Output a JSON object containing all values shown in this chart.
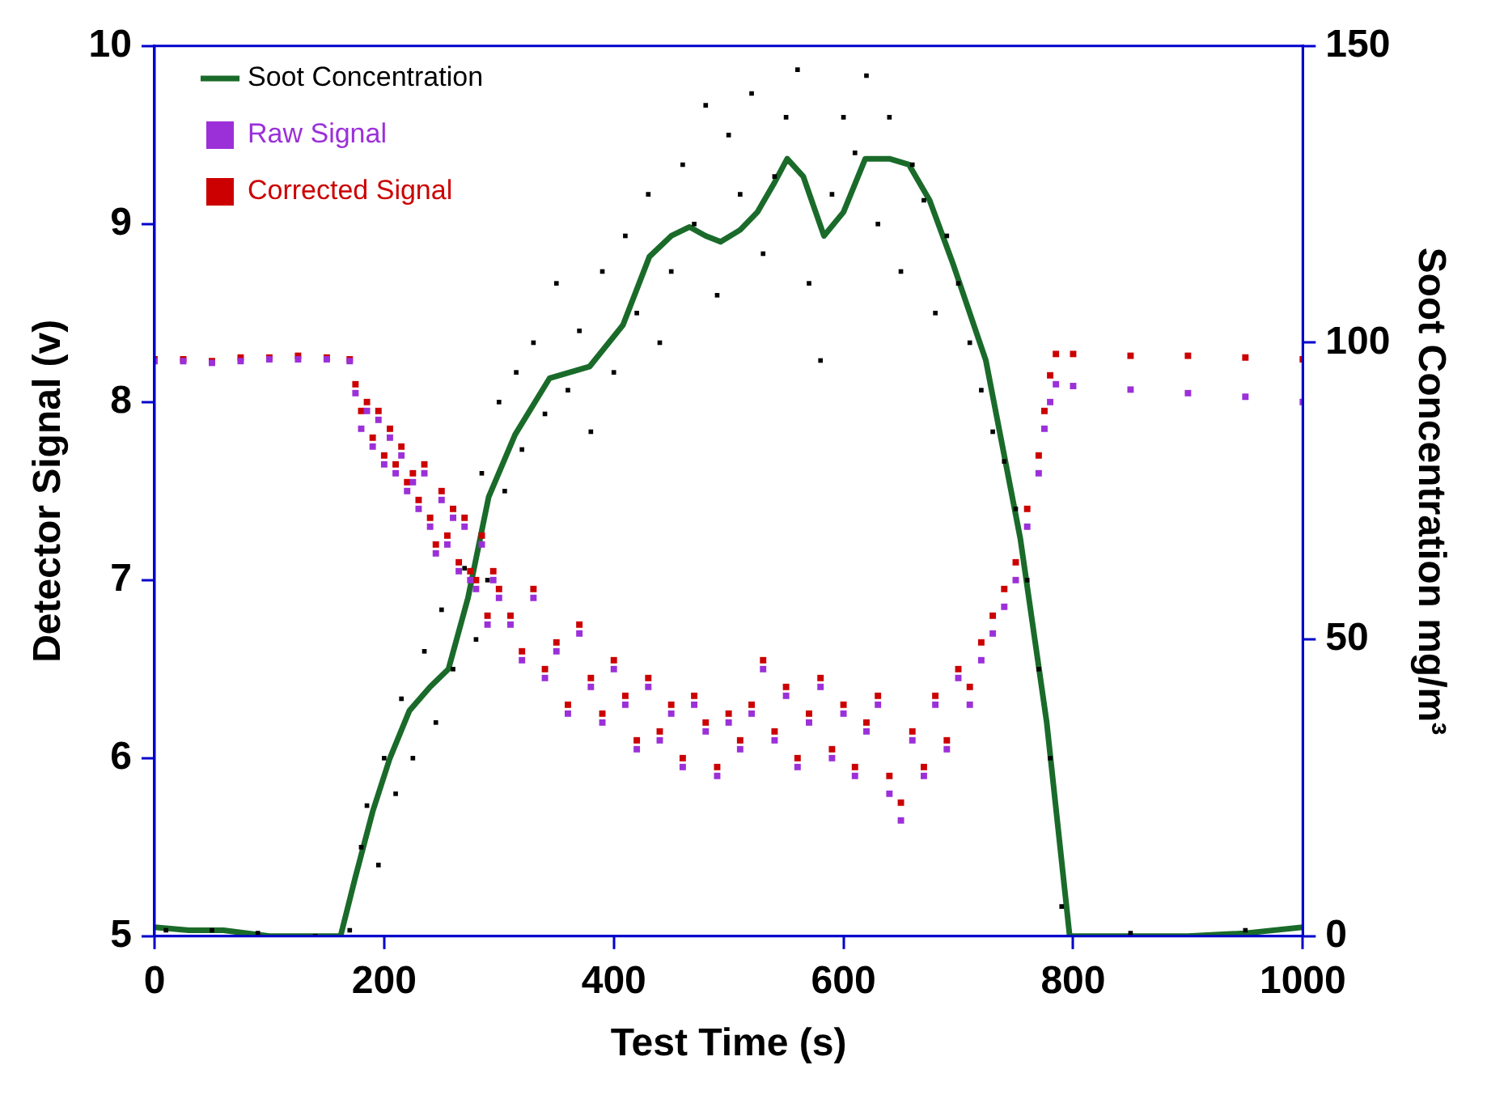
{
  "chart_data": {
    "type": "scatter",
    "xlabel": "Test Time (s)",
    "ylabel": "Detector Signal (v)",
    "y2label": "Soot Concentration mg/m³",
    "xlim": [
      0,
      1000
    ],
    "xticks": [
      0,
      200,
      400,
      600,
      800,
      1000
    ],
    "ylim": [
      5,
      10
    ],
    "yticks": [
      5,
      6,
      7,
      8,
      9,
      10
    ],
    "y2lim": [
      0,
      150
    ],
    "y2ticks": [
      0,
      50,
      100,
      150
    ],
    "grid": false,
    "legend": "top left",
    "series": [
      {
        "name": "Soot Concentration",
        "type": "line",
        "axis": "y2",
        "color": "#1a6b2a",
        "marker": "none",
        "x": [
          0,
          30,
          60,
          100,
          130,
          162,
          175,
          190,
          205,
          222,
          240,
          256,
          273,
          291,
          314,
          344,
          379,
          408,
          431,
          450,
          466,
          480,
          493,
          510,
          525,
          540,
          551,
          565,
          583,
          600,
          619,
          640,
          657,
          675,
          695,
          724,
          754,
          777,
          797,
          850,
          900,
          950,
          1000
        ],
        "values": [
          1.5,
          1,
          1,
          0,
          0,
          0,
          10,
          21,
          30,
          38,
          42,
          45,
          57,
          74,
          84.5,
          94,
          96,
          103,
          114.5,
          118,
          119.5,
          118,
          117,
          119,
          122,
          127,
          131,
          128,
          118,
          122,
          131,
          131,
          130,
          124,
          113.5,
          97,
          67,
          36,
          0,
          0,
          0,
          0.5,
          1.5
        ]
      },
      {
        "axis": "y2",
        "color": "#000000",
        "marker": "square",
        "x": [
          10,
          50,
          90,
          140,
          170,
          180,
          185,
          195,
          200,
          210,
          215,
          225,
          235,
          245,
          250,
          260,
          270,
          280,
          285,
          290,
          300,
          305,
          315,
          320,
          330,
          340,
          350,
          360,
          370,
          380,
          390,
          400,
          410,
          420,
          430,
          440,
          450,
          460,
          470,
          480,
          490,
          500,
          510,
          520,
          530,
          540,
          550,
          560,
          570,
          580,
          590,
          600,
          610,
          620,
          630,
          640,
          650,
          660,
          670,
          680,
          690,
          700,
          710,
          720,
          730,
          740,
          750,
          760,
          770,
          780,
          790,
          850,
          950
        ],
        "values": [
          1,
          1,
          0.5,
          0,
          1,
          15,
          22,
          12,
          30,
          24,
          40,
          30,
          48,
          36,
          55,
          45,
          62,
          50,
          78,
          60,
          90,
          75,
          95,
          82,
          100,
          88,
          110,
          92,
          102,
          85,
          112,
          95,
          118,
          105,
          125,
          100,
          112,
          130,
          120,
          140,
          108,
          135,
          125,
          142,
          115,
          128,
          138,
          146,
          110,
          97,
          125,
          138,
          132,
          145,
          120,
          138,
          112,
          130,
          124,
          105,
          118,
          110,
          100,
          92,
          85,
          80,
          72,
          60,
          45,
          30,
          5,
          0.5,
          1
        ]
      },
      {
        "name": "Raw Signal",
        "axis": "y",
        "color": "#9b30d9",
        "marker": "square",
        "x": [
          0,
          25,
          50,
          75,
          100,
          125,
          150,
          170,
          175,
          180,
          185,
          190,
          195,
          200,
          205,
          210,
          215,
          220,
          225,
          230,
          235,
          240,
          245,
          250,
          255,
          260,
          265,
          270,
          275,
          280,
          285,
          290,
          295,
          300,
          310,
          320,
          330,
          340,
          350,
          360,
          370,
          380,
          390,
          400,
          410,
          420,
          430,
          440,
          450,
          460,
          470,
          480,
          490,
          500,
          510,
          520,
          530,
          540,
          550,
          560,
          570,
          580,
          590,
          600,
          610,
          620,
          630,
          640,
          650,
          660,
          670,
          680,
          690,
          700,
          710,
          720,
          730,
          740,
          750,
          760,
          770,
          775,
          780,
          785,
          800,
          850,
          900,
          950,
          1000
        ],
        "values": [
          8.23,
          8.23,
          8.22,
          8.23,
          8.24,
          8.24,
          8.24,
          8.23,
          8.05,
          7.85,
          7.95,
          7.75,
          7.9,
          7.65,
          7.8,
          7.6,
          7.7,
          7.5,
          7.55,
          7.4,
          7.6,
          7.3,
          7.15,
          7.45,
          7.2,
          7.35,
          7.05,
          7.3,
          7.0,
          6.95,
          7.2,
          6.75,
          7.0,
          6.9,
          6.75,
          6.55,
          6.9,
          6.45,
          6.6,
          6.25,
          6.7,
          6.4,
          6.2,
          6.5,
          6.3,
          6.05,
          6.4,
          6.1,
          6.25,
          5.95,
          6.3,
          6.15,
          5.9,
          6.2,
          6.05,
          6.25,
          6.5,
          6.1,
          6.35,
          5.95,
          6.2,
          6.4,
          6.0,
          6.25,
          5.9,
          6.15,
          6.3,
          5.8,
          5.65,
          6.1,
          5.9,
          6.3,
          6.05,
          6.45,
          6.3,
          6.55,
          6.7,
          6.85,
          7.0,
          7.3,
          7.6,
          7.85,
          8.0,
          8.1,
          8.09,
          8.07,
          8.05,
          8.03,
          8.0
        ]
      },
      {
        "name": "Corrected Signal",
        "axis": "y",
        "color": "#cc0000",
        "marker": "square",
        "x": [
          0,
          25,
          50,
          75,
          100,
          125,
          150,
          170,
          175,
          180,
          185,
          190,
          195,
          200,
          205,
          210,
          215,
          220,
          225,
          230,
          235,
          240,
          245,
          250,
          255,
          260,
          265,
          270,
          275,
          280,
          285,
          290,
          295,
          300,
          310,
          320,
          330,
          340,
          350,
          360,
          370,
          380,
          390,
          400,
          410,
          420,
          430,
          440,
          450,
          460,
          470,
          480,
          490,
          500,
          510,
          520,
          530,
          540,
          550,
          560,
          570,
          580,
          590,
          600,
          610,
          620,
          630,
          640,
          650,
          660,
          670,
          680,
          690,
          700,
          710,
          720,
          730,
          740,
          750,
          760,
          770,
          775,
          780,
          785,
          800,
          850,
          900,
          950,
          1000
        ],
        "values": [
          8.24,
          8.24,
          8.23,
          8.25,
          8.25,
          8.26,
          8.25,
          8.24,
          8.1,
          7.95,
          8.0,
          7.8,
          7.95,
          7.7,
          7.85,
          7.65,
          7.75,
          7.55,
          7.6,
          7.45,
          7.65,
          7.35,
          7.2,
          7.5,
          7.25,
          7.4,
          7.1,
          7.35,
          7.05,
          7.0,
          7.25,
          6.8,
          7.05,
          6.95,
          6.8,
          6.6,
          6.95,
          6.5,
          6.65,
          6.3,
          6.75,
          6.45,
          6.25,
          6.55,
          6.35,
          6.1,
          6.45,
          6.15,
          6.3,
          6.0,
          6.35,
          6.2,
          5.95,
          6.25,
          6.1,
          6.3,
          6.55,
          6.15,
          6.4,
          6.0,
          6.25,
          6.45,
          6.05,
          6.3,
          5.95,
          6.2,
          6.35,
          5.9,
          5.75,
          6.15,
          5.95,
          6.35,
          6.1,
          6.5,
          6.4,
          6.65,
          6.8,
          6.95,
          7.1,
          7.4,
          7.7,
          7.95,
          8.15,
          8.27,
          8.27,
          8.26,
          8.26,
          8.25,
          8.24
        ]
      }
    ]
  }
}
